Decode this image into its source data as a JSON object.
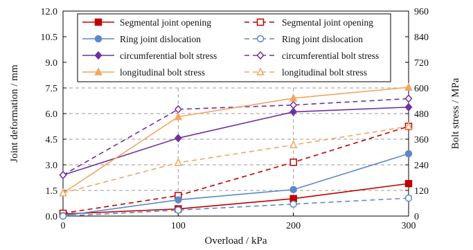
{
  "chart_data": {
    "type": "line",
    "xlabel": "Overload / kPa",
    "ylabel_left": "Joint deformation / mm",
    "ylabel_right": "Bolt stress / MPa",
    "x": [
      0,
      100,
      200,
      300
    ],
    "x_ticks": [
      "0",
      "100",
      "200",
      "300"
    ],
    "xlim": [
      0,
      300
    ],
    "ylim_left": [
      0,
      12
    ],
    "ylim_right": [
      0,
      960
    ],
    "y_ticks_left": [
      "0.0",
      "1.5",
      "3.0",
      "4.5",
      "6.0",
      "7.5",
      "9.0",
      "10.5",
      "12.0"
    ],
    "y_ticks_right": [
      "0",
      "120",
      "240",
      "360",
      "480",
      "600",
      "720",
      "840",
      "960"
    ],
    "grid": "dashed gridlines from 0 to 600 MPa",
    "legend_position": "top, inside plot",
    "series": [
      {
        "name": "Segmental joint opening",
        "axis": "left",
        "style": "solid",
        "marker": "square-filled",
        "color": "#c00000",
        "values": [
          0.12,
          0.42,
          1.02,
          1.9
        ]
      },
      {
        "name": "Segmental joint opening",
        "axis": "left",
        "style": "dashed",
        "marker": "square-open",
        "color": "#c00000",
        "values": [
          0.16,
          1.2,
          3.15,
          5.25
        ]
      },
      {
        "name": "Ring joint dislocation",
        "axis": "left",
        "style": "solid",
        "marker": "circle-filled",
        "color": "#5b8ac6",
        "values": [
          0.02,
          0.95,
          1.55,
          3.65
        ]
      },
      {
        "name": "Ring joint dislocation",
        "axis": "left",
        "style": "dashed",
        "marker": "circle-open",
        "color": "#5b8ac6",
        "values": [
          0.0,
          0.35,
          0.7,
          1.05
        ]
      },
      {
        "name": "circumferential bolt stress",
        "axis": "right",
        "style": "solid",
        "marker": "diamond-filled",
        "color": "#7030a0",
        "values": [
          192,
          365,
          488,
          510
        ]
      },
      {
        "name": "circumferential bolt stress",
        "axis": "right",
        "style": "dashed",
        "marker": "diamond-open",
        "color": "#7030a0",
        "values": [
          192,
          500,
          520,
          550
        ]
      },
      {
        "name": "longitudinal bolt stress",
        "axis": "right",
        "style": "solid",
        "marker": "triangle-filled",
        "color": "#f4a460",
        "values": [
          108,
          465,
          552,
          603
        ]
      },
      {
        "name": "longitudinal bolt stress",
        "axis": "right",
        "style": "dashed",
        "marker": "triangle-open",
        "color": "#f4a460",
        "values": [
          108,
          250,
          333,
          420
        ]
      }
    ]
  }
}
